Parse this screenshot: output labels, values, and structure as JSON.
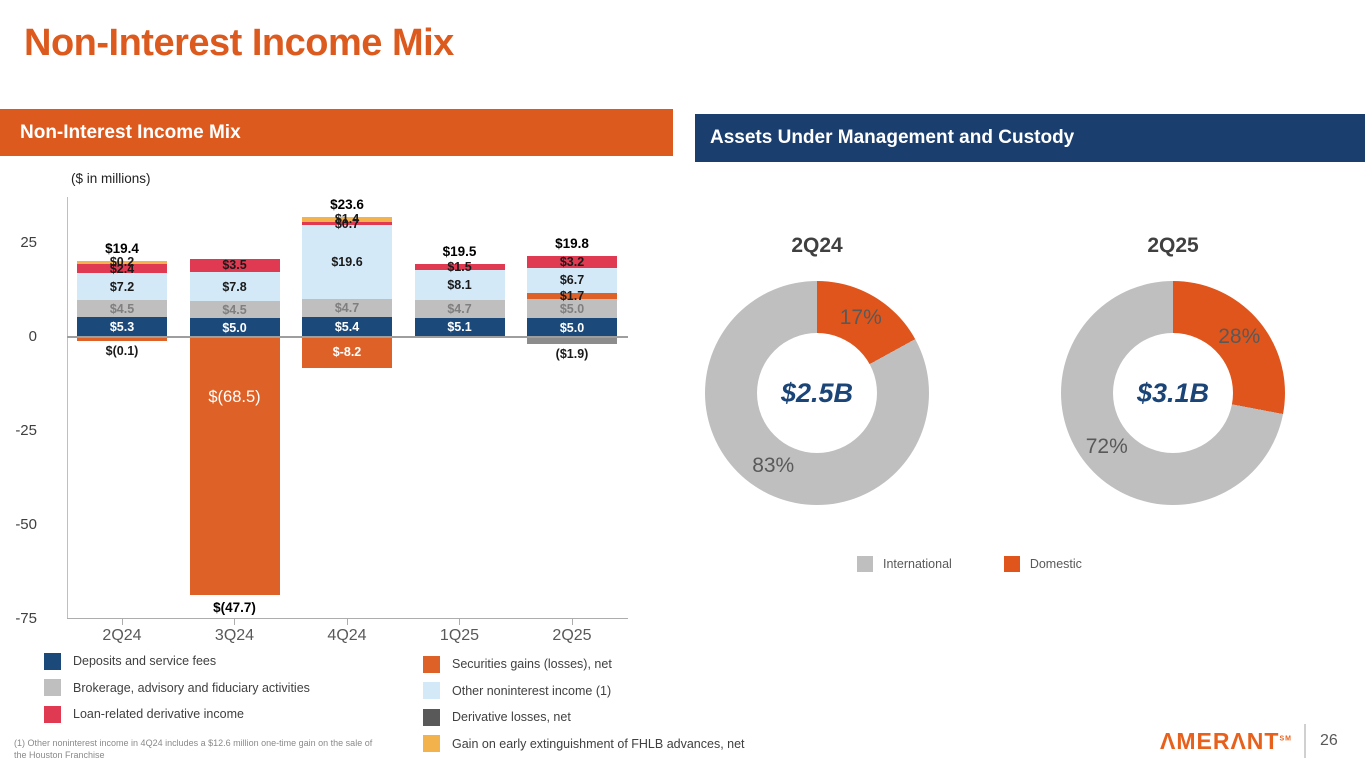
{
  "page": {
    "title": "Non-Interest Income Mix",
    "page_number": "26",
    "logo_text": "ΛMERΛNT",
    "logo_sm": "SM"
  },
  "panels": {
    "left_header": "Non-Interest Income Mix",
    "right_header": "Assets Under Management and Custody",
    "units_note": "($ in millions)"
  },
  "footnote": "(1) Other noninterest income in 4Q24 includes a $12.6 million one-time gain on the sale of the Houston Franchise",
  "series": {
    "deposits": {
      "name": "Deposits and service fees",
      "color": "#1B4A7A",
      "label_color": "#FFFFFF"
    },
    "brokerage": {
      "name": "Brokerage, advisory and fiduciary activities",
      "color": "#BFBFBF",
      "label_color": "#7F7F7F"
    },
    "loan_derivative": {
      "name": "Loan-related derivative income",
      "color": "#E03A52",
      "label_color": "#1A1A1A"
    },
    "securities": {
      "name": "Securities gains (losses), net",
      "color": "#DE6227",
      "label_color": "#FFFFFF"
    },
    "other": {
      "name": "Other noninterest income (1)",
      "color": "#D3E9F8",
      "label_color": "#1A1A1A"
    },
    "derivative_losses": {
      "name": "Derivative losses, net",
      "color": "#595959",
      "label_color": "#1A1A1A"
    },
    "fhlb_gain": {
      "name": "Gain on early extinguishment of FHLB advances, net",
      "color": "#F3B24B",
      "label_color": "#1A1A1A"
    }
  },
  "legend_left": [
    "deposits",
    "brokerage",
    "loan_derivative"
  ],
  "legend_right": [
    "securities",
    "other",
    "derivative_losses",
    "fhlb_gain"
  ],
  "chart_data": [
    {
      "type": "bar",
      "stacked": true,
      "title": "Non-Interest Income Mix",
      "ylabel": "$ in millions",
      "ylim": [
        -75,
        32
      ],
      "y_ticks": [
        25,
        0,
        -25,
        -50,
        -75
      ],
      "categories": [
        "2Q24",
        "3Q24",
        "4Q24",
        "1Q25",
        "2Q25"
      ],
      "bars": [
        {
          "category": "2Q24",
          "total_label": "$19.4",
          "segments": [
            {
              "key": "deposits",
              "value": 5.3,
              "label": "$5.3"
            },
            {
              "key": "brokerage",
              "value": 4.5,
              "label": "$4.5"
            },
            {
              "key": "other",
              "value": 7.2,
              "label": "$7.2"
            },
            {
              "key": "loan_derivative",
              "value": 2.4,
              "label": "$2.4"
            },
            {
              "key": "fhlb_gain",
              "value": 0.2,
              "label": "$0.2"
            },
            {
              "key": "securities",
              "value": -0.1,
              "label": "$(0.1)"
            }
          ]
        },
        {
          "category": "3Q24",
          "total_label": "$(47.7)",
          "segments": [
            {
              "key": "deposits",
              "value": 5.0,
              "label": "$5.0"
            },
            {
              "key": "brokerage",
              "value": 4.5,
              "label": "$4.5"
            },
            {
              "key": "other",
              "value": 7.8,
              "label": "$7.8"
            },
            {
              "key": "loan_derivative",
              "value": 3.5,
              "label": "$3.5"
            },
            {
              "key": "securities",
              "value": -68.5,
              "label": "$(68.5)"
            }
          ]
        },
        {
          "category": "4Q24",
          "total_label": "$23.6",
          "segments": [
            {
              "key": "deposits",
              "value": 5.4,
              "label": "$5.4"
            },
            {
              "key": "brokerage",
              "value": 4.7,
              "label": "$4.7"
            },
            {
              "key": "other",
              "value": 19.6,
              "label": "$19.6"
            },
            {
              "key": "loan_derivative",
              "value": 0.7,
              "label": "$0.7"
            },
            {
              "key": "fhlb_gain",
              "value": 1.4,
              "label": "$1.4"
            },
            {
              "key": "securities",
              "value": -8.2,
              "label": "$-8.2"
            }
          ]
        },
        {
          "category": "1Q25",
          "total_label": "$19.5",
          "segments": [
            {
              "key": "deposits",
              "value": 5.1,
              "label": "$5.1"
            },
            {
              "key": "brokerage",
              "value": 4.7,
              "label": "$4.7"
            },
            {
              "key": "other",
              "value": 8.1,
              "label": "$8.1"
            },
            {
              "key": "loan_derivative",
              "value": 1.5,
              "label": "$1.5"
            }
          ]
        },
        {
          "category": "2Q25",
          "total_label": "$19.8",
          "segments": [
            {
              "key": "deposits",
              "value": 5.0,
              "label": "$5.0"
            },
            {
              "key": "brokerage",
              "value": 5.0,
              "label": "$5.0"
            },
            {
              "key": "securities",
              "value": 1.7,
              "label": "$1.7",
              "label_color": "#1A1A1A"
            },
            {
              "key": "other",
              "value": 6.7,
              "label": "$6.7"
            },
            {
              "key": "loan_derivative",
              "value": 3.2,
              "label": "$3.2"
            },
            {
              "key": "derivative_losses",
              "value": -1.9,
              "label": "($1.9)",
              "color": "#8C8C8C"
            }
          ]
        }
      ]
    },
    {
      "type": "donut",
      "title": "2Q24",
      "center_label": "$2.5B",
      "slices": [
        {
          "name": "Domestic",
          "pct": 17,
          "color": "#E0551B"
        },
        {
          "name": "International",
          "pct": 83,
          "color": "#BFBFBF"
        }
      ]
    },
    {
      "type": "donut",
      "title": "2Q25",
      "center_label": "$3.1B",
      "slices": [
        {
          "name": "Domestic",
          "pct": 28,
          "color": "#E0551B"
        },
        {
          "name": "International",
          "pct": 72,
          "color": "#BFBFBF"
        }
      ]
    }
  ],
  "aum_legend": [
    {
      "label": "International",
      "color": "#BFBFBF"
    },
    {
      "label": "Domestic",
      "color": "#E0551B"
    }
  ]
}
